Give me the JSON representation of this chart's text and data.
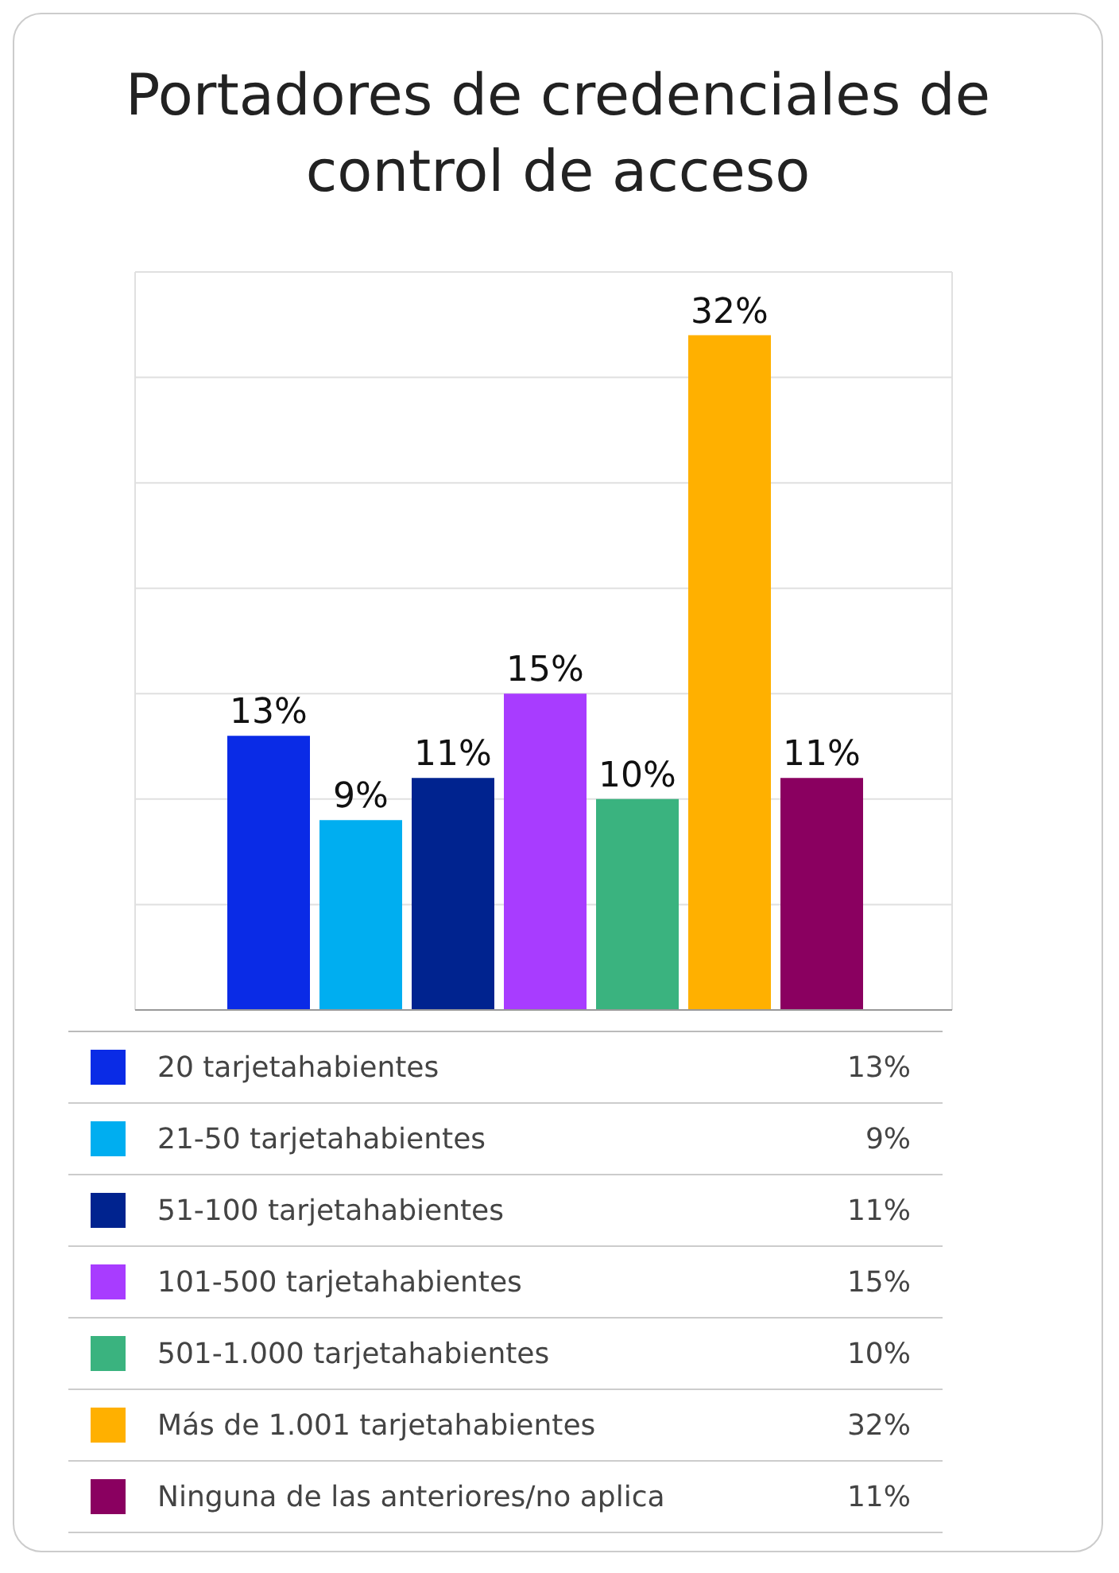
{
  "chart_data": {
    "type": "bar",
    "title": "Portadores de credenciales de control de acceso",
    "categories": [
      null
    ],
    "series": [
      {
        "name": "20 tarjetahabientes",
        "color": "#0a2be6",
        "values": [
          13
        ],
        "value_labels": [
          "13%"
        ]
      },
      {
        "name": "21-50 tarjetahabientes",
        "color": "#00aef0",
        "values": [
          9
        ],
        "value_labels": [
          "9%"
        ]
      },
      {
        "name": "51-100 tarjetahabientes",
        "color": "#00238f",
        "values": [
          11
        ],
        "value_labels": [
          "11%"
        ]
      },
      {
        "name": "101-500 tarjetahabientes",
        "color": "#a83cff",
        "values": [
          15
        ],
        "value_labels": [
          "15%"
        ]
      },
      {
        "name": "501-1.000 tarjetahabientes",
        "color": "#3ab37f",
        "values": [
          10
        ],
        "value_labels": [
          "10%"
        ]
      },
      {
        "name": "Más de 1.001 tarjetahabientes",
        "color": "#ffb000",
        "values": [
          32
        ],
        "value_labels": [
          "32%"
        ]
      },
      {
        "name": "Ninguna de las anteriores/no aplica",
        "color": "#8a0060",
        "values": [
          11
        ],
        "value_labels": [
          "11%"
        ]
      }
    ],
    "ylim": [
      0,
      35
    ],
    "yticks": [
      0,
      5,
      10,
      15,
      20,
      25,
      30,
      35
    ],
    "grid": "y",
    "tick_labels": false,
    "legend": "bottom"
  }
}
